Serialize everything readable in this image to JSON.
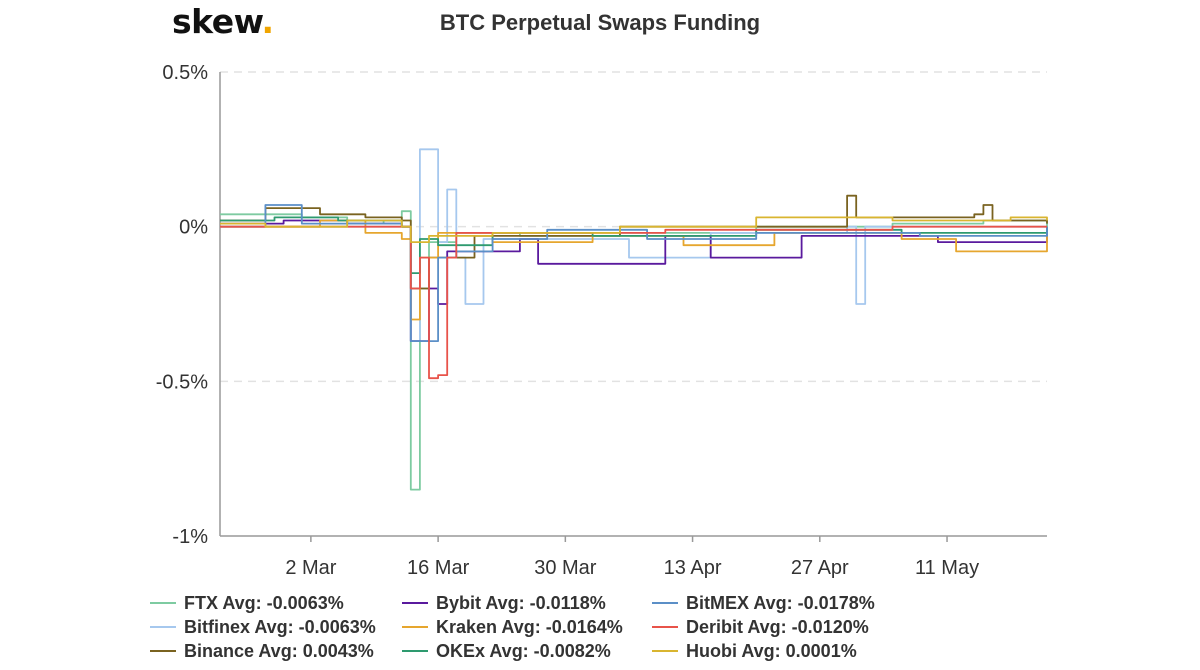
{
  "logo": {
    "text": "skew",
    "dot": "."
  },
  "chart_data": {
    "type": "line",
    "title": "BTC Perpetual Swaps Funding",
    "xlabel": "",
    "ylabel": "",
    "ylim": [
      -1,
      0.5
    ],
    "y_ticks": [
      {
        "value": 0.5,
        "label": "0.5%"
      },
      {
        "value": 0,
        "label": "0%"
      },
      {
        "value": -0.5,
        "label": "-0.5%"
      },
      {
        "value": -1,
        "label": "-1%"
      }
    ],
    "x_start": "2020-02-21",
    "x_end": "2020-05-22",
    "x_ticks": [
      {
        "date": "2020-03-02",
        "label": "2 Mar"
      },
      {
        "date": "2020-03-16",
        "label": "16 Mar"
      },
      {
        "date": "2020-03-30",
        "label": "30 Mar"
      },
      {
        "date": "2020-04-13",
        "label": "13 Apr"
      },
      {
        "date": "2020-04-27",
        "label": "27 Apr"
      },
      {
        "date": "2020-05-11",
        "label": "11 May"
      }
    ],
    "grid": "horizontal dashed",
    "legend_position": "bottom",
    "series": [
      {
        "name": "FTX",
        "legend": "FTX Avg: -0.0063%",
        "color": "#7ecba1",
        "points": [
          [
            "2020-02-21",
            0.04
          ],
          [
            "2020-02-25",
            0.04
          ],
          [
            "2020-03-01",
            0.03
          ],
          [
            "2020-03-06",
            0.01
          ],
          [
            "2020-03-10",
            0.02
          ],
          [
            "2020-03-12",
            0.05
          ],
          [
            "2020-03-13",
            -0.7
          ],
          [
            "2020-03-13",
            -0.85
          ],
          [
            "2020-03-14",
            -0.2
          ],
          [
            "2020-03-15",
            -0.05
          ],
          [
            "2020-03-18",
            -0.02
          ],
          [
            "2020-03-25",
            -0.03
          ],
          [
            "2020-04-05",
            -0.02
          ],
          [
            "2020-04-20",
            0.0
          ],
          [
            "2020-05-05",
            0.01
          ],
          [
            "2020-05-15",
            0.02
          ],
          [
            "2020-05-22",
            0.0
          ]
        ]
      },
      {
        "name": "Bitfinex",
        "legend": "Bitfinex Avg: -0.0063%",
        "color": "#a6c8ee",
        "points": [
          [
            "2020-02-21",
            0.0
          ],
          [
            "2020-03-10",
            0.0
          ],
          [
            "2020-03-13",
            -0.37
          ],
          [
            "2020-03-14",
            0.25
          ],
          [
            "2020-03-15",
            0.25
          ],
          [
            "2020-03-16",
            -0.05
          ],
          [
            "2020-03-17",
            0.12
          ],
          [
            "2020-03-18",
            -0.1
          ],
          [
            "2020-03-19",
            -0.25
          ],
          [
            "2020-03-20",
            -0.25
          ],
          [
            "2020-03-21",
            -0.04
          ],
          [
            "2020-04-06",
            -0.1
          ],
          [
            "2020-04-15",
            -0.02
          ],
          [
            "2020-04-30",
            0.0
          ],
          [
            "2020-05-01",
            -0.25
          ],
          [
            "2020-05-02",
            0.0
          ],
          [
            "2020-05-22",
            0.0
          ]
        ]
      },
      {
        "name": "Binance",
        "legend": "Binance Avg: 0.0043%",
        "color": "#7a6320",
        "points": [
          [
            "2020-02-21",
            0.02
          ],
          [
            "2020-02-26",
            0.06
          ],
          [
            "2020-03-03",
            0.04
          ],
          [
            "2020-03-08",
            0.03
          ],
          [
            "2020-03-12",
            0.02
          ],
          [
            "2020-03-13",
            -0.2
          ],
          [
            "2020-03-15",
            -0.1
          ],
          [
            "2020-03-20",
            -0.03
          ],
          [
            "2020-04-05",
            0.0
          ],
          [
            "2020-04-29",
            0.0
          ],
          [
            "2020-04-30",
            0.1
          ],
          [
            "2020-05-01",
            0.03
          ],
          [
            "2020-05-14",
            0.04
          ],
          [
            "2020-05-15",
            0.07
          ],
          [
            "2020-05-16",
            0.02
          ],
          [
            "2020-05-22",
            0.01
          ]
        ]
      },
      {
        "name": "Bybit",
        "legend": "Bybit Avg: -0.0118%",
        "color": "#5a1a9e",
        "points": [
          [
            "2020-02-21",
            0.01
          ],
          [
            "2020-02-28",
            0.02
          ],
          [
            "2020-03-06",
            0.01
          ],
          [
            "2020-03-12",
            0.0
          ],
          [
            "2020-03-13",
            -0.37
          ],
          [
            "2020-03-14",
            -0.37
          ],
          [
            "2020-03-15",
            -0.2
          ],
          [
            "2020-03-16",
            -0.25
          ],
          [
            "2020-03-17",
            -0.08
          ],
          [
            "2020-03-25",
            -0.04
          ],
          [
            "2020-03-27",
            -0.12
          ],
          [
            "2020-04-10",
            -0.03
          ],
          [
            "2020-04-15",
            -0.1
          ],
          [
            "2020-04-25",
            -0.03
          ],
          [
            "2020-05-10",
            -0.05
          ],
          [
            "2020-05-22",
            0.0
          ]
        ]
      },
      {
        "name": "Kraken",
        "legend": "Kraken Avg: -0.0164%",
        "color": "#e6a62e",
        "points": [
          [
            "2020-02-21",
            0.0
          ],
          [
            "2020-03-03",
            0.02
          ],
          [
            "2020-03-08",
            -0.02
          ],
          [
            "2020-03-12",
            -0.04
          ],
          [
            "2020-03-13",
            -0.3
          ],
          [
            "2020-03-14",
            -0.1
          ],
          [
            "2020-03-16",
            -0.02
          ],
          [
            "2020-03-22",
            -0.05
          ],
          [
            "2020-04-02",
            -0.03
          ],
          [
            "2020-04-12",
            -0.06
          ],
          [
            "2020-04-22",
            -0.02
          ],
          [
            "2020-05-06",
            -0.04
          ],
          [
            "2020-05-12",
            -0.08
          ],
          [
            "2020-05-22",
            -0.03
          ]
        ]
      },
      {
        "name": "OKEx",
        "legend": "OKEx Avg: -0.0082%",
        "color": "#2e9a6f",
        "points": [
          [
            "2020-02-21",
            0.02
          ],
          [
            "2020-02-27",
            0.03
          ],
          [
            "2020-03-05",
            0.02
          ],
          [
            "2020-03-12",
            0.0
          ],
          [
            "2020-03-13",
            -0.15
          ],
          [
            "2020-03-14",
            -0.04
          ],
          [
            "2020-03-16",
            -0.06
          ],
          [
            "2020-03-22",
            -0.02
          ],
          [
            "2020-04-02",
            -0.03
          ],
          [
            "2020-04-20",
            -0.01
          ],
          [
            "2020-05-06",
            -0.02
          ],
          [
            "2020-05-22",
            0.0
          ]
        ]
      },
      {
        "name": "BitMEX",
        "legend": "BitMEX Avg: -0.0178%",
        "color": "#5b8fc7",
        "points": [
          [
            "2020-02-21",
            0.0
          ],
          [
            "2020-02-26",
            0.07
          ],
          [
            "2020-03-01",
            0.01
          ],
          [
            "2020-03-08",
            0.01
          ],
          [
            "2020-03-12",
            0.0
          ],
          [
            "2020-03-13",
            -0.37
          ],
          [
            "2020-03-15",
            -0.37
          ],
          [
            "2020-03-16",
            -0.1
          ],
          [
            "2020-03-18",
            -0.08
          ],
          [
            "2020-03-22",
            -0.04
          ],
          [
            "2020-03-28",
            -0.01
          ],
          [
            "2020-04-08",
            -0.04
          ],
          [
            "2020-04-20",
            -0.02
          ],
          [
            "2020-05-08",
            -0.03
          ],
          [
            "2020-05-22",
            0.0
          ]
        ]
      },
      {
        "name": "Deribit",
        "legend": "Deribit Avg: -0.0120%",
        "color": "#e8534a",
        "points": [
          [
            "2020-02-21",
            0.0
          ],
          [
            "2020-03-02",
            0.0
          ],
          [
            "2020-03-12",
            0.0
          ],
          [
            "2020-03-13",
            -0.2
          ],
          [
            "2020-03-14",
            -0.1
          ],
          [
            "2020-03-15",
            -0.49
          ],
          [
            "2020-03-16",
            -0.48
          ],
          [
            "2020-03-17",
            -0.1
          ],
          [
            "2020-03-18",
            -0.02
          ],
          [
            "2020-03-25",
            -0.02
          ],
          [
            "2020-04-10",
            -0.01
          ],
          [
            "2020-05-05",
            0.0
          ],
          [
            "2020-05-22",
            0.0
          ]
        ]
      },
      {
        "name": "Huobi",
        "legend": "Huobi Avg: 0.0001%",
        "color": "#d9b530",
        "points": [
          [
            "2020-02-21",
            0.01
          ],
          [
            "2020-02-26",
            0.0
          ],
          [
            "2020-03-06",
            0.02
          ],
          [
            "2020-03-12",
            0.0
          ],
          [
            "2020-03-13",
            -0.05
          ],
          [
            "2020-03-15",
            -0.03
          ],
          [
            "2020-03-22",
            -0.02
          ],
          [
            "2020-04-05",
            0.0
          ],
          [
            "2020-04-20",
            0.03
          ],
          [
            "2020-05-05",
            0.02
          ],
          [
            "2020-05-18",
            0.03
          ],
          [
            "2020-05-22",
            0.02
          ]
        ]
      }
    ]
  }
}
